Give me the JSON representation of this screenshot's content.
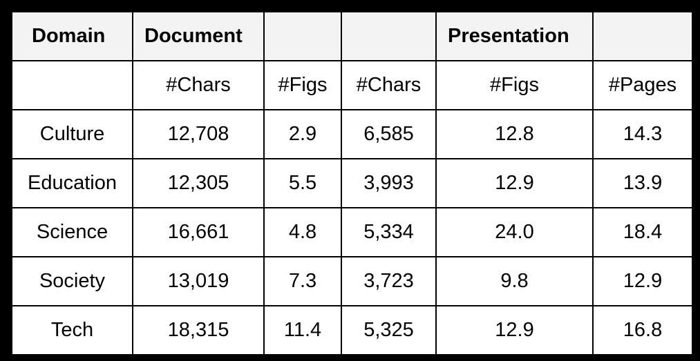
{
  "table": {
    "header": [
      "Domain",
      "Document",
      "",
      "",
      "Presentation",
      ""
    ],
    "subheader": [
      "",
      "#Chars",
      "#Figs",
      "#Chars",
      "#Figs",
      "#Pages"
    ],
    "rows": [
      [
        "Culture",
        "12,708",
        "2.9",
        "6,585",
        "12.8",
        "14.3"
      ],
      [
        "Education",
        "12,305",
        "5.5",
        "3,993",
        "12.9",
        "13.9"
      ],
      [
        "Science",
        "16,661",
        "4.8",
        "5,334",
        "24.0",
        "18.4"
      ],
      [
        "Society",
        "13,019",
        "7.3",
        "3,723",
        "9.8",
        "12.9"
      ],
      [
        "Tech",
        "18,315",
        "11.4",
        "5,325",
        "12.9",
        "16.8"
      ]
    ]
  },
  "colors": {
    "background": "#000000",
    "header_fill": "#f3f3f3",
    "cell_fill": "#ffffff",
    "text": "#000000"
  }
}
